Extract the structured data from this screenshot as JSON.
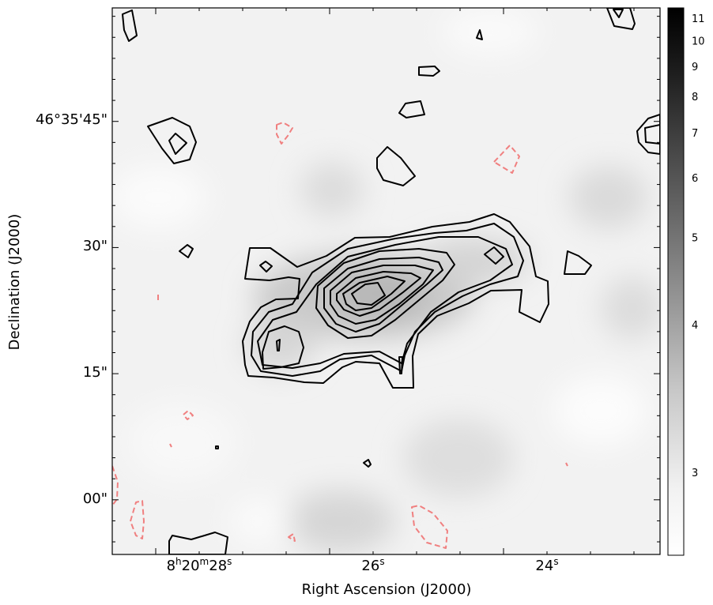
{
  "chart_data": {
    "type": "heatmap",
    "title": "",
    "xlabel": "Right Ascension (J2000)",
    "ylabel": "Declination (J2000)",
    "x_ticks": [
      {
        "h": "8",
        "m": "20",
        "s": "28",
        "label_parts": [
          "8",
          "h",
          "20",
          "m",
          "28",
          "s"
        ]
      },
      {
        "s": "26",
        "label_parts": [
          "26",
          "s"
        ]
      },
      {
        "s": "24",
        "label_parts": [
          "24",
          "s"
        ]
      }
    ],
    "y_ticks": [
      "46°35'45\"",
      "30\"",
      "15\"",
      "00\""
    ],
    "x_tick_seconds": [
      28,
      26,
      24
    ],
    "y_tick_arcsec": [
      45,
      30,
      15,
      0
    ],
    "x_range_seconds": [
      28.5,
      22.2
    ],
    "y_range_arcsec": [
      -6.5,
      58.5
    ],
    "colorbar": {
      "range": [
        2.6,
        11.5
      ],
      "scale": "nonlinear",
      "ticks": [
        "3",
        "4",
        "5",
        "6",
        "7",
        "8",
        "9",
        "10",
        "11"
      ],
      "colormap": "gray_r"
    },
    "contours": {
      "positive_color": "#000000",
      "negative_color": "#f08080",
      "negative_style": "dashed",
      "positive_levels": 9
    },
    "grid": false
  }
}
